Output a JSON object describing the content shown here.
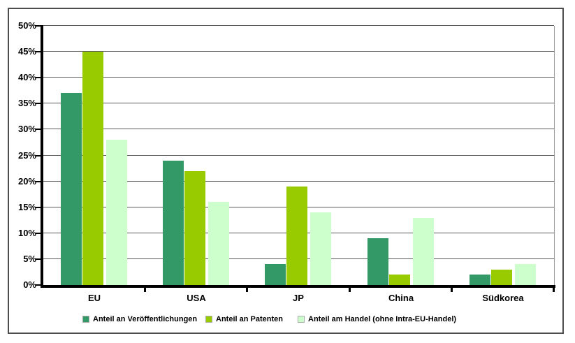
{
  "chart_data": {
    "type": "bar",
    "title": "",
    "categories": [
      "EU",
      "USA",
      "JP",
      "China",
      "Südkorea"
    ],
    "series": [
      {
        "name": "Anteil an Veröffentlichungen",
        "color": "#339966",
        "values": [
          37,
          24,
          4,
          9,
          2
        ]
      },
      {
        "name": "Anteil an Patenten",
        "color": "#99CC00",
        "values": [
          45,
          22,
          19,
          2,
          3
        ]
      },
      {
        "name": "Anteil am Handel (ohne Intra-EU-Handel)",
        "color": "#CCFFCC",
        "values": [
          28,
          16,
          14,
          13,
          4
        ]
      }
    ],
    "xlabel": "",
    "ylabel": "",
    "ylim": [
      0,
      50
    ],
    "ytick_step": 5,
    "ytick_labels": [
      "0%",
      "5%",
      "10%",
      "15%",
      "20%",
      "25%",
      "30%",
      "35%",
      "40%",
      "45%",
      "50%"
    ],
    "grid": true,
    "legend_position": "bottom"
  },
  "colors": {
    "background": "#ffffff",
    "frame_border": "#4d4d4d",
    "gridline": "#5a5a5a",
    "axis": "#000000",
    "plot_border": "#999999"
  }
}
